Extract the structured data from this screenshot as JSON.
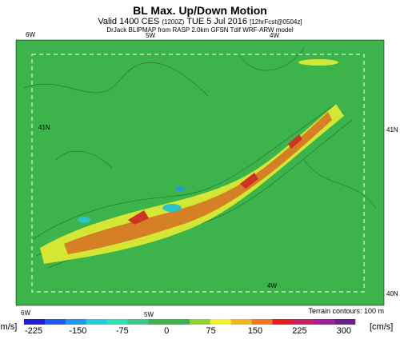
{
  "title": "BL Max. Up/Down Motion",
  "subtitle": {
    "valid": "Valid 1400 CES",
    "utc": "(1200Z)",
    "date": "TUE 5 Jul 2016",
    "forecast": "[12hrFcst@0504z]"
  },
  "source": "DrJack BLIPMAP from RASP 2.0km GFSN Tdif WRF-ARW model",
  "map_labels": {
    "top": [
      "6W",
      "5W",
      "4W"
    ],
    "left": "41N",
    "right": [
      "41N",
      "40N"
    ],
    "inner": "4W",
    "bottom": [
      "6W",
      "5W"
    ]
  },
  "terrain_note": "Terrain contours: 100 m",
  "colorbar": {
    "unit_left": "[cm/s]",
    "unit_right": "[cm/s]",
    "ticks": [
      "-225",
      "-150",
      "-75",
      "0",
      "75",
      "150",
      "225",
      "300"
    ]
  }
}
